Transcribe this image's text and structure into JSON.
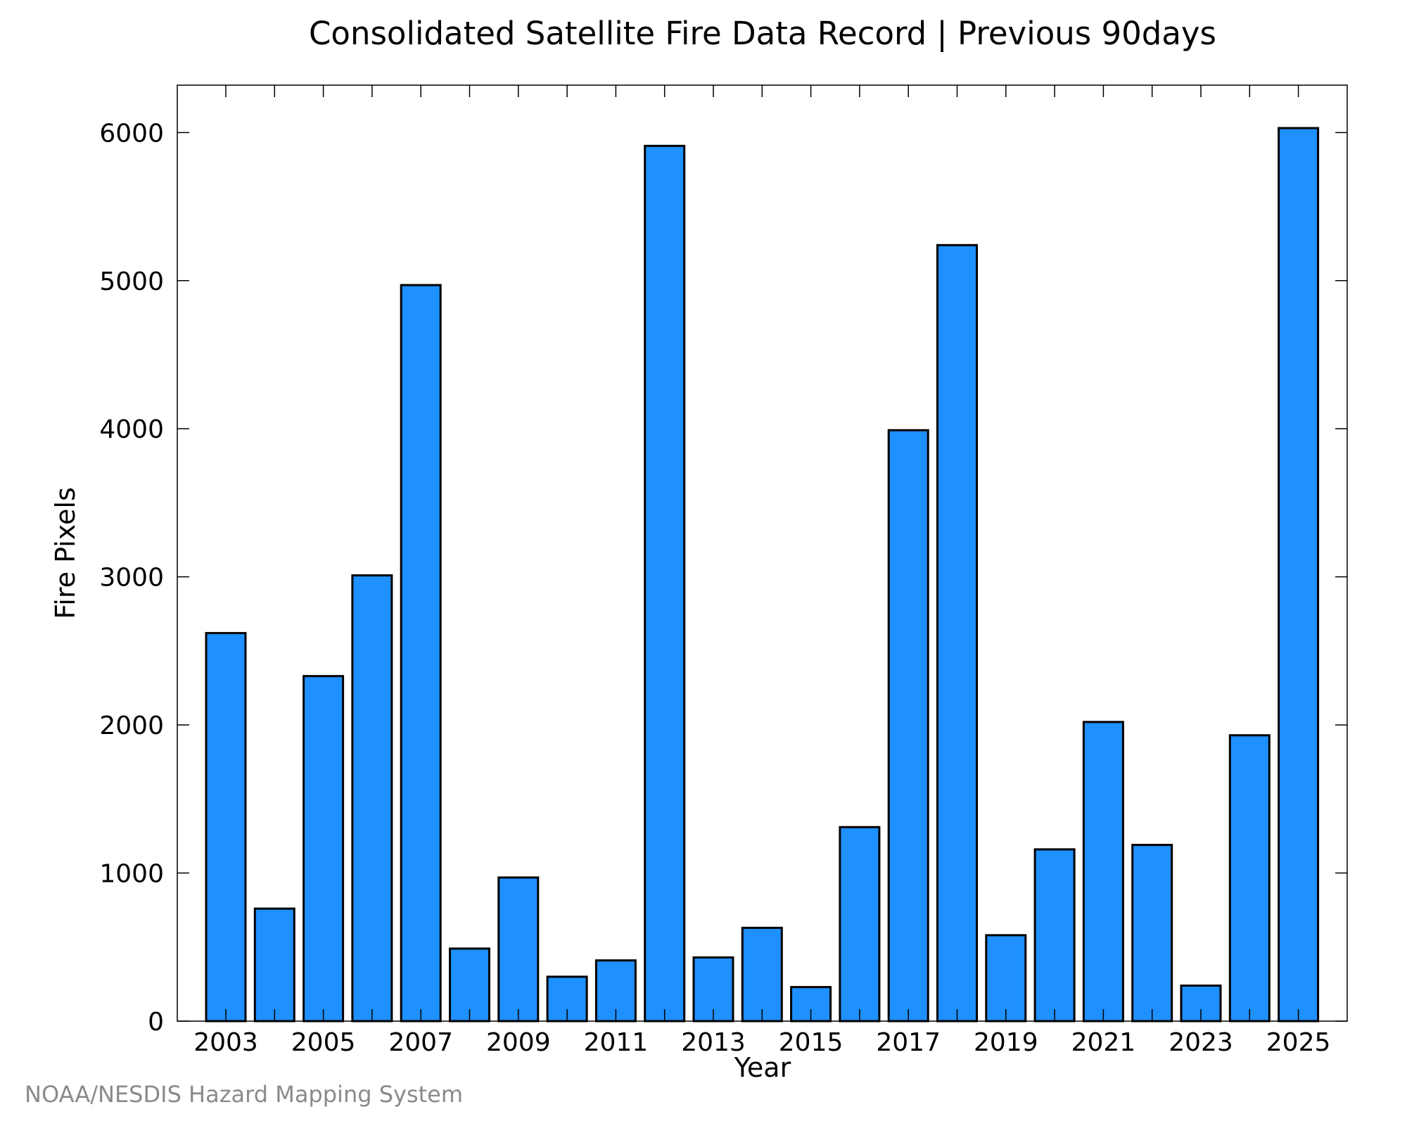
{
  "chart_data": {
    "type": "bar",
    "title": "Consolidated Satellite Fire Data Record | Previous 90days",
    "xlabel": "Year",
    "ylabel": "Fire Pixels",
    "categories": [
      "2003",
      "2004",
      "2005",
      "2006",
      "2007",
      "2008",
      "2009",
      "2010",
      "2011",
      "2012",
      "2013",
      "2014",
      "2015",
      "2016",
      "2017",
      "2018",
      "2019",
      "2020",
      "2021",
      "2022",
      "2023",
      "2024",
      "2025"
    ],
    "x_tick_labels": [
      "2003",
      "2005",
      "2007",
      "2009",
      "2011",
      "2013",
      "2015",
      "2017",
      "2019",
      "2021",
      "2023",
      "2025"
    ],
    "values": [
      2620,
      760,
      2330,
      3010,
      4970,
      490,
      970,
      300,
      410,
      5910,
      430,
      630,
      230,
      1310,
      3990,
      5240,
      580,
      1160,
      2020,
      1190,
      240,
      1930,
      6030
    ],
    "ylim": [
      0,
      6320
    ],
    "y_ticks": [
      0,
      1000,
      2000,
      3000,
      4000,
      5000,
      6000
    ],
    "grid": false,
    "bar_color": "#1e90ff",
    "edge_color": "#000000"
  },
  "footer": {
    "credit": "NOAA/NESDIS Hazard Mapping System"
  }
}
